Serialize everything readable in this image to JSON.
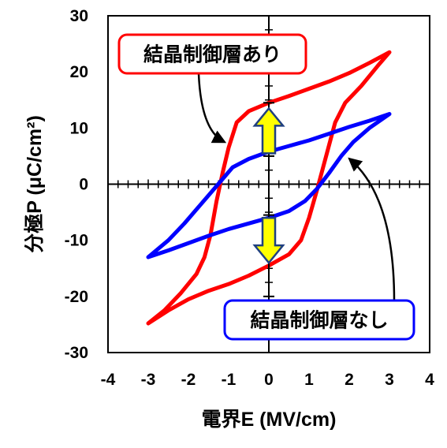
{
  "chart_data": {
    "type": "line",
    "xlabel": "電界E (MV/cm)",
    "ylabel": "分極P (μC/cm²)",
    "xlim": [
      -4,
      4
    ],
    "ylim": [
      -30,
      30
    ],
    "x_ticks": [
      -4,
      -3,
      -2,
      -1,
      0,
      1,
      2,
      3,
      4
    ],
    "y_ticks": [
      -30,
      -20,
      -10,
      0,
      10,
      20,
      30
    ],
    "x_tick_labels": [
      "-4",
      "-3",
      "-2",
      "-1",
      "0",
      "1",
      "2",
      "3",
      "4"
    ],
    "y_tick_labels": [
      "-30",
      "-20",
      "-10",
      "0",
      "10",
      "20",
      "30"
    ],
    "grid": false,
    "series": [
      {
        "name": "結晶制御層あり",
        "color": "#ff0000",
        "points": [
          [
            3.0,
            23.5
          ],
          [
            2.5,
            21.6
          ],
          [
            2.0,
            19.8
          ],
          [
            1.5,
            18.3
          ],
          [
            1.0,
            17.0
          ],
          [
            0.5,
            15.7
          ],
          [
            0.0,
            14.5
          ],
          [
            -0.5,
            13.0
          ],
          [
            -0.8,
            11.0
          ],
          [
            -1.0,
            6.5
          ],
          [
            -1.15,
            2.0
          ],
          [
            -1.3,
            -3.0
          ],
          [
            -1.45,
            -9.0
          ],
          [
            -1.6,
            -13.0
          ],
          [
            -1.8,
            -16.0
          ],
          [
            -2.2,
            -19.5
          ],
          [
            -2.6,
            -22.5
          ],
          [
            -3.0,
            -24.8
          ],
          [
            -2.5,
            -22.5
          ],
          [
            -2.0,
            -20.5
          ],
          [
            -1.5,
            -19.0
          ],
          [
            -1.0,
            -17.8
          ],
          [
            -0.5,
            -16.3
          ],
          [
            0.0,
            -14.5
          ],
          [
            0.5,
            -12.5
          ],
          [
            0.8,
            -10.0
          ],
          [
            1.0,
            -6.0
          ],
          [
            1.2,
            -1.0
          ],
          [
            1.35,
            3.0
          ],
          [
            1.5,
            7.0
          ],
          [
            1.65,
            11.0
          ],
          [
            1.9,
            14.5
          ],
          [
            2.3,
            17.5
          ],
          [
            2.7,
            21.0
          ],
          [
            3.0,
            23.5
          ]
        ]
      },
      {
        "name": "結晶制御層なし",
        "color": "#0000ff",
        "points": [
          [
            3.0,
            12.5
          ],
          [
            2.5,
            11.3
          ],
          [
            2.0,
            10.2
          ],
          [
            1.5,
            9.0
          ],
          [
            1.0,
            7.8
          ],
          [
            0.5,
            6.8
          ],
          [
            0.0,
            5.8
          ],
          [
            -0.5,
            4.5
          ],
          [
            -0.9,
            3.0
          ],
          [
            -1.2,
            0.5
          ],
          [
            -1.5,
            -2.0
          ],
          [
            -1.8,
            -4.5
          ],
          [
            -2.1,
            -7.0
          ],
          [
            -2.5,
            -10.0
          ],
          [
            -3.0,
            -13.0
          ],
          [
            -2.5,
            -11.8
          ],
          [
            -2.0,
            -10.5
          ],
          [
            -1.5,
            -9.2
          ],
          [
            -1.0,
            -8.0
          ],
          [
            -0.5,
            -7.0
          ],
          [
            0.0,
            -6.0
          ],
          [
            0.5,
            -4.8
          ],
          [
            0.9,
            -3.0
          ],
          [
            1.2,
            -0.8
          ],
          [
            1.5,
            2.0
          ],
          [
            1.8,
            5.0
          ],
          [
            2.1,
            7.5
          ],
          [
            2.5,
            10.0
          ],
          [
            3.0,
            12.5
          ]
        ]
      }
    ],
    "arrows": [
      {
        "direction": "up",
        "color": "#ffff00",
        "x": 0.0,
        "y_from": 5.5,
        "y_to": 13.5
      },
      {
        "direction": "down",
        "color": "#ffff00",
        "x": 0.0,
        "y_from": -6.0,
        "y_to": -14.0
      }
    ],
    "annotations": [
      {
        "text": "結晶制御層あり",
        "border_color": "#ff0000",
        "points_to": [
          -1.0,
          7.0
        ]
      },
      {
        "text": "結晶制御層なし",
        "border_color": "#0000ff",
        "points_to": [
          1.9,
          5.0
        ]
      }
    ],
    "error_bars": [
      {
        "x": 0.0,
        "y_low": 5.0,
        "y_high": 14.5
      },
      {
        "x": 0.0,
        "y_low": -20.0,
        "y_high": -5.5
      }
    ]
  }
}
